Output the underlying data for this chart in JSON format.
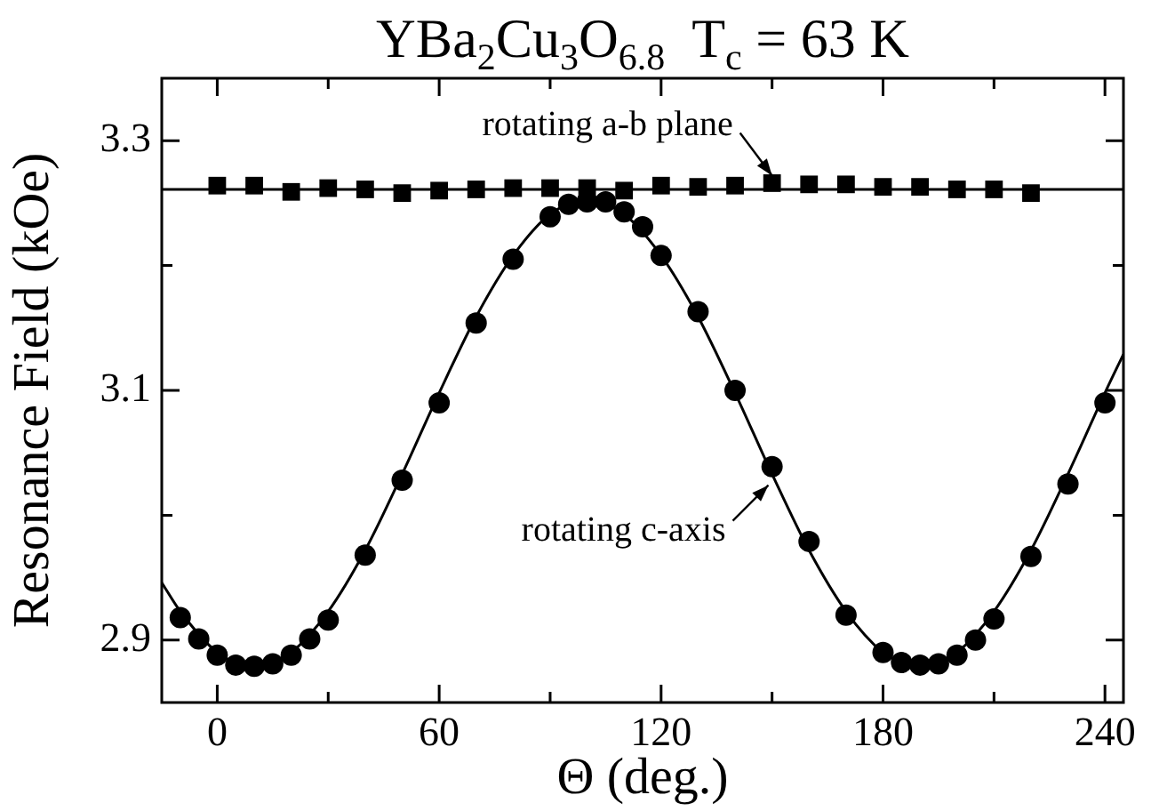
{
  "chart_data": {
    "type": "scatter",
    "title": "YBa$_{2}$Cu$_{3}$O$_{6.8}$  T$_{c}$ = 63 K",
    "xlabel": "Θ (deg.)",
    "ylabel": "Resonance Field (kOe)",
    "xlim": [
      -15,
      245
    ],
    "ylim": [
      2.85,
      3.35
    ],
    "xticks": [
      0,
      {
        "value": 30,
        "label": null
      },
      60,
      {
        "value": 90,
        "label": null
      },
      120,
      {
        "value": 150,
        "label": null
      },
      180,
      {
        "value": 210,
        "label": null
      },
      240
    ],
    "yticks": [
      2.9,
      {
        "value": 3.0,
        "label": null
      },
      3.1,
      {
        "value": 3.2,
        "label": null
      },
      3.3
    ],
    "grid": false,
    "legend": false,
    "series": [
      {
        "type": "scatter",
        "marker": "square",
        "color": "#000000",
        "x": [
          0,
          10,
          20,
          30,
          40,
          50,
          60,
          70,
          80,
          90,
          100,
          110,
          120,
          130,
          140,
          150,
          160,
          170,
          180,
          190,
          200,
          210,
          220
        ],
        "values": [
          3.264,
          3.264,
          3.259,
          3.262,
          3.261,
          3.258,
          3.26,
          3.261,
          3.262,
          3.262,
          3.262,
          3.26,
          3.264,
          3.263,
          3.264,
          3.266,
          3.265,
          3.265,
          3.263,
          3.263,
          3.261,
          3.261,
          3.258
        ]
      },
      {
        "type": "line",
        "marker": "none",
        "color": "#000000",
        "x": [
          -15,
          245
        ],
        "values": [
          3.261,
          3.261
        ]
      },
      {
        "type": "scatter",
        "marker": "circle",
        "color": "#000000",
        "x": [
          -10,
          -5,
          0,
          5,
          10,
          15,
          20,
          25,
          30,
          40,
          50,
          60,
          70,
          80,
          90,
          95,
          100,
          105,
          110,
          115,
          120,
          130,
          140,
          150,
          160,
          170,
          180,
          185,
          190,
          195,
          200,
          205,
          210,
          220,
          230,
          240
        ],
        "values": [
          2.918,
          2.901,
          2.888,
          2.88,
          2.879,
          2.881,
          2.888,
          2.901,
          2.916,
          2.968,
          3.028,
          3.09,
          3.154,
          3.205,
          3.239,
          3.249,
          3.251,
          3.251,
          3.243,
          3.231,
          3.208,
          3.163,
          3.1,
          3.039,
          2.979,
          2.92,
          2.89,
          2.882,
          2.88,
          2.881,
          2.888,
          2.9,
          2.917,
          2.967,
          3.025,
          3.09
        ]
      },
      {
        "type": "line",
        "marker": "none",
        "color": "#000000",
        "x": [
          -15,
          -10,
          0,
          5,
          10,
          15,
          20,
          30,
          40,
          50,
          60,
          70,
          80,
          90,
          100,
          110,
          120,
          130,
          140,
          150,
          160,
          170,
          180,
          185,
          190,
          195,
          200,
          210,
          220,
          230,
          240,
          245
        ],
        "values": [
          2.946,
          2.923,
          2.89,
          2.882,
          2.879,
          2.882,
          2.89,
          2.923,
          2.972,
          3.033,
          3.098,
          3.159,
          3.208,
          3.241,
          3.252,
          3.241,
          3.208,
          3.159,
          3.098,
          3.033,
          2.972,
          2.923,
          2.89,
          2.882,
          2.879,
          2.882,
          2.89,
          2.923,
          2.972,
          3.033,
          3.098,
          3.129
        ]
      }
    ],
    "annotations": [
      {
        "text": "rotating a-b plane",
        "x": 150,
        "y": 3.272
      },
      {
        "text": "rotating c-axis",
        "x": 149,
        "y": 3.024
      }
    ]
  }
}
